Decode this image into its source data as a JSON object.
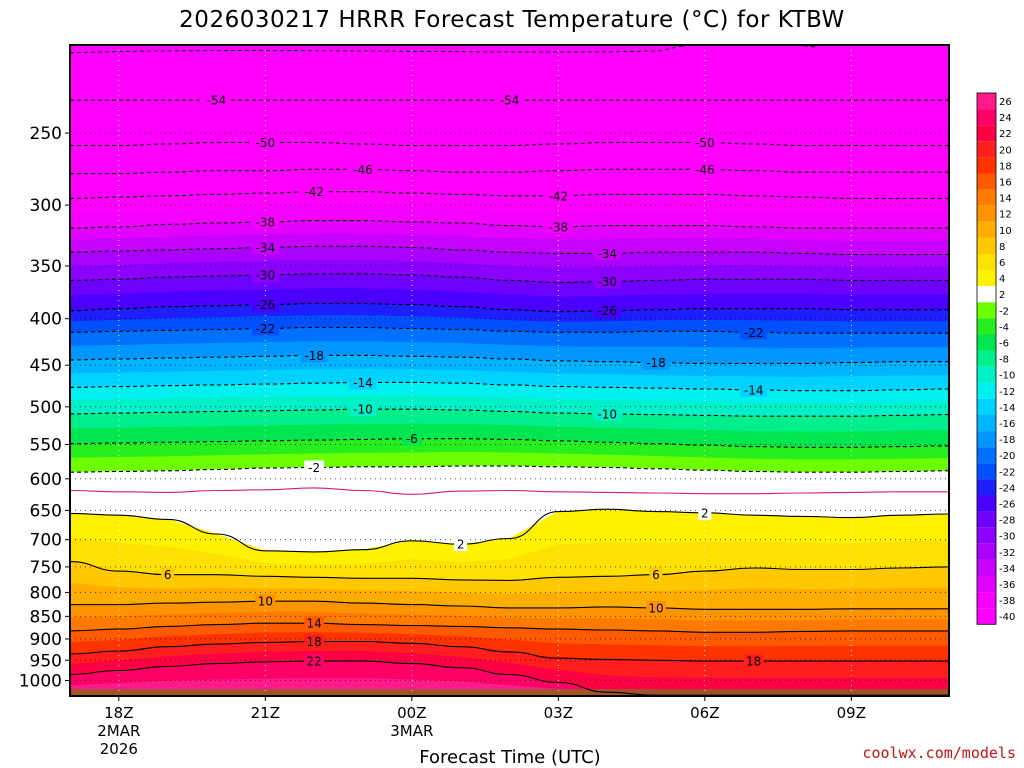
{
  "credit": "coolwx.com/models",
  "chart_data": {
    "type": "heatmap",
    "title": "2026030217 HRRR Forecast Temperature (°C) for KTBW",
    "xlabel": "Forecast Time (UTC)",
    "ylabel": "",
    "y_axis_scale": "log-pressure (hPa), inverted",
    "ylim": [
      1040,
      200
    ],
    "x_range_hours": [
      -1,
      17
    ],
    "x_ticks": [
      {
        "hour": 0,
        "label": "18Z",
        "sub1": "2MAR",
        "sub2": "2026"
      },
      {
        "hour": 3,
        "label": "21Z",
        "sub1": "",
        "sub2": ""
      },
      {
        "hour": 6,
        "label": "00Z",
        "sub1": "3MAR",
        "sub2": ""
      },
      {
        "hour": 9,
        "label": "03Z",
        "sub1": "",
        "sub2": ""
      },
      {
        "hour": 12,
        "label": "06Z",
        "sub1": "",
        "sub2": ""
      },
      {
        "hour": 15,
        "label": "09Z",
        "sub1": "",
        "sub2": ""
      }
    ],
    "y_ticks": [
      250,
      300,
      350,
      400,
      450,
      500,
      550,
      600,
      650,
      700,
      750,
      800,
      850,
      900,
      950,
      1000
    ],
    "grid": true,
    "legend": "right",
    "colorbar_labels": [
      26,
      24,
      22,
      20,
      18,
      16,
      14,
      12,
      10,
      8,
      6,
      4,
      2,
      -2,
      -4,
      -6,
      -8,
      -10,
      -12,
      -14,
      -16,
      -18,
      -20,
      -22,
      -24,
      -26,
      -28,
      -30,
      -32,
      -34,
      -36,
      -38,
      -40
    ],
    "colorbar_colors": [
      "#ff1a8c",
      "#ff0066",
      "#ff0044",
      "#ff1e1e",
      "#ff3300",
      "#ff5a00",
      "#ff7a00",
      "#ff9400",
      "#ffad00",
      "#ffc800",
      "#ffe100",
      "#fff200",
      "#ffffff",
      "#6cff00",
      "#27ee1e",
      "#00e650",
      "#00ee8c",
      "#00f0c8",
      "#00f0f0",
      "#00d2ff",
      "#00b4ff",
      "#0096ff",
      "#0070ff",
      "#0050ff",
      "#1e1eff",
      "#4b00ff",
      "#6e00ff",
      "#8c00ff",
      "#aa00ff",
      "#c800ff",
      "#e100ff",
      "#f500ff",
      "#ff00ff"
    ],
    "surface_color": "#a0522d",
    "hours": [
      -1,
      0,
      1,
      2,
      3,
      4,
      5,
      6,
      7,
      8,
      9,
      10,
      11,
      12,
      13,
      14,
      15,
      16,
      17
    ],
    "isotherms": [
      {
        "value": -54,
        "style": "dashed",
        "pressure": [
          230,
          230,
          230,
          230,
          230,
          230,
          230,
          230,
          230,
          230,
          230,
          230,
          230,
          230,
          230,
          230,
          230,
          230,
          230
        ],
        "labels": [
          3,
          9
        ]
      },
      {
        "value": -50,
        "style": "dashed",
        "pressure": [
          258,
          258,
          257,
          256,
          256,
          256,
          257,
          258,
          258,
          258,
          257,
          256,
          256,
          256,
          257,
          258,
          258,
          258,
          258
        ],
        "labels": [
          4,
          13
        ]
      },
      {
        "value": -46,
        "style": "dashed",
        "pressure": [
          277,
          277,
          276,
          275,
          275,
          274,
          274,
          275,
          276,
          276,
          275,
          274,
          274,
          274,
          275,
          276,
          276,
          276,
          276
        ],
        "labels": [
          6,
          13
        ]
      },
      {
        "value": -42,
        "style": "dashed",
        "pressure": [
          295,
          294,
          293,
          292,
          291,
          290,
          290,
          291,
          292,
          293,
          293,
          292,
          292,
          292,
          293,
          294,
          295,
          295,
          295
        ],
        "labels": [
          5,
          10
        ]
      },
      {
        "value": -38,
        "style": "dashed",
        "pressure": [
          318,
          317,
          315,
          314,
          313,
          312,
          312,
          313,
          314,
          316,
          317,
          316,
          316,
          316,
          317,
          318,
          318,
          318,
          318
        ],
        "labels": [
          4,
          10
        ]
      },
      {
        "value": -34,
        "style": "dashed",
        "pressure": [
          338,
          337,
          336,
          335,
          334,
          333,
          333,
          334,
          336,
          338,
          339,
          339,
          338,
          338,
          338,
          339,
          340,
          340,
          340
        ],
        "labels": [
          4,
          11
        ]
      },
      {
        "value": -30,
        "style": "dashed",
        "pressure": [
          363,
          362,
          360,
          359,
          358,
          357,
          357,
          358,
          360,
          363,
          365,
          364,
          363,
          362,
          362,
          362,
          363,
          363,
          363
        ],
        "labels": [
          4,
          11
        ]
      },
      {
        "value": -26,
        "style": "dashed",
        "pressure": [
          392,
          390,
          388,
          387,
          386,
          385,
          385,
          386,
          388,
          391,
          393,
          392,
          391,
          390,
          390,
          390,
          391,
          391,
          391
        ],
        "labels": [
          4,
          11
        ]
      },
      {
        "value": -22,
        "style": "dashed",
        "pressure": [
          414,
          413,
          412,
          411,
          410,
          409,
          409,
          410,
          411,
          413,
          414,
          414,
          413,
          413,
          414,
          415,
          415,
          415,
          415
        ],
        "labels": [
          4,
          14
        ]
      },
      {
        "value": -18,
        "style": "dashed",
        "pressure": [
          444,
          443,
          442,
          441,
          440,
          439,
          439,
          440,
          441,
          443,
          445,
          446,
          447,
          448,
          448,
          448,
          447,
          446,
          446
        ],
        "labels": [
          5,
          12
        ]
      },
      {
        "value": -14,
        "style": "dashed",
        "pressure": [
          476,
          475,
          474,
          473,
          472,
          471,
          470,
          470,
          471,
          473,
          475,
          476,
          477,
          478,
          479,
          480,
          480,
          479,
          478
        ],
        "labels": [
          6,
          14
        ]
      },
      {
        "value": -10,
        "style": "dashed",
        "pressure": [
          509,
          508,
          507,
          506,
          505,
          504,
          503,
          503,
          504,
          506,
          508,
          509,
          510,
          511,
          512,
          512,
          512,
          511,
          510
        ],
        "labels": [
          6,
          11
        ]
      },
      {
        "value": -6,
        "style": "dashed",
        "pressure": [
          549,
          548,
          547,
          546,
          545,
          544,
          543,
          542,
          542,
          543,
          545,
          547,
          549,
          551,
          553,
          554,
          554,
          553,
          552
        ],
        "labels": [
          7
        ]
      },
      {
        "value": -2,
        "style": "dashed",
        "pressure": [
          590,
          589,
          588,
          586,
          584,
          583,
          582,
          582,
          581,
          581,
          582,
          583,
          585,
          587,
          589,
          590,
          590,
          589,
          588
        ],
        "labels": [
          5
        ]
      },
      {
        "value": 0,
        "style": "pink",
        "pressure": [
          618,
          620,
          621,
          618,
          617,
          614,
          618,
          624,
          619,
          618,
          620,
          621,
          622,
          623,
          623,
          622,
          621,
          620,
          620
        ],
        "labels": []
      },
      {
        "value": 2,
        "style": "solid",
        "pressure": [
          655,
          658,
          665,
          690,
          720,
          722,
          718,
          702,
          708,
          698,
          652,
          648,
          652,
          654,
          658,
          660,
          662,
          658,
          656
        ],
        "labels": [
          8,
          13
        ]
      },
      {
        "value": 6,
        "style": "solid",
        "pressure": [
          740,
          758,
          765,
          765,
          768,
          770,
          772,
          772,
          775,
          776,
          770,
          768,
          765,
          758,
          752,
          755,
          755,
          752,
          750
        ],
        "labels": [
          2,
          12
        ]
      },
      {
        "value": 10,
        "style": "solid",
        "pressure": [
          825,
          825,
          822,
          820,
          818,
          818,
          822,
          825,
          828,
          832,
          832,
          830,
          832,
          835,
          835,
          835,
          834,
          834,
          834
        ],
        "labels": [
          4,
          12
        ]
      },
      {
        "value": 14,
        "style": "solid",
        "pressure": [
          882,
          878,
          872,
          868,
          865,
          865,
          868,
          870,
          872,
          875,
          878,
          880,
          882,
          885,
          885,
          883,
          882,
          882,
          882
        ],
        "labels": [
          5
        ]
      },
      {
        "value": 18,
        "style": "solid",
        "pressure": [
          935,
          928,
          918,
          912,
          908,
          906,
          906,
          910,
          918,
          930,
          945,
          948,
          950,
          952,
          952,
          952,
          952,
          952,
          952
        ],
        "labels": [
          5,
          14
        ]
      },
      {
        "value": 22,
        "style": "solid",
        "pressure": [
          985,
          975,
          965,
          958,
          954,
          952,
          952,
          958,
          968,
          985,
          1005,
          1030,
          1038,
          1038,
          1038,
          1038,
          1038,
          1038,
          1038
        ],
        "labels": [
          5
        ]
      }
    ]
  }
}
